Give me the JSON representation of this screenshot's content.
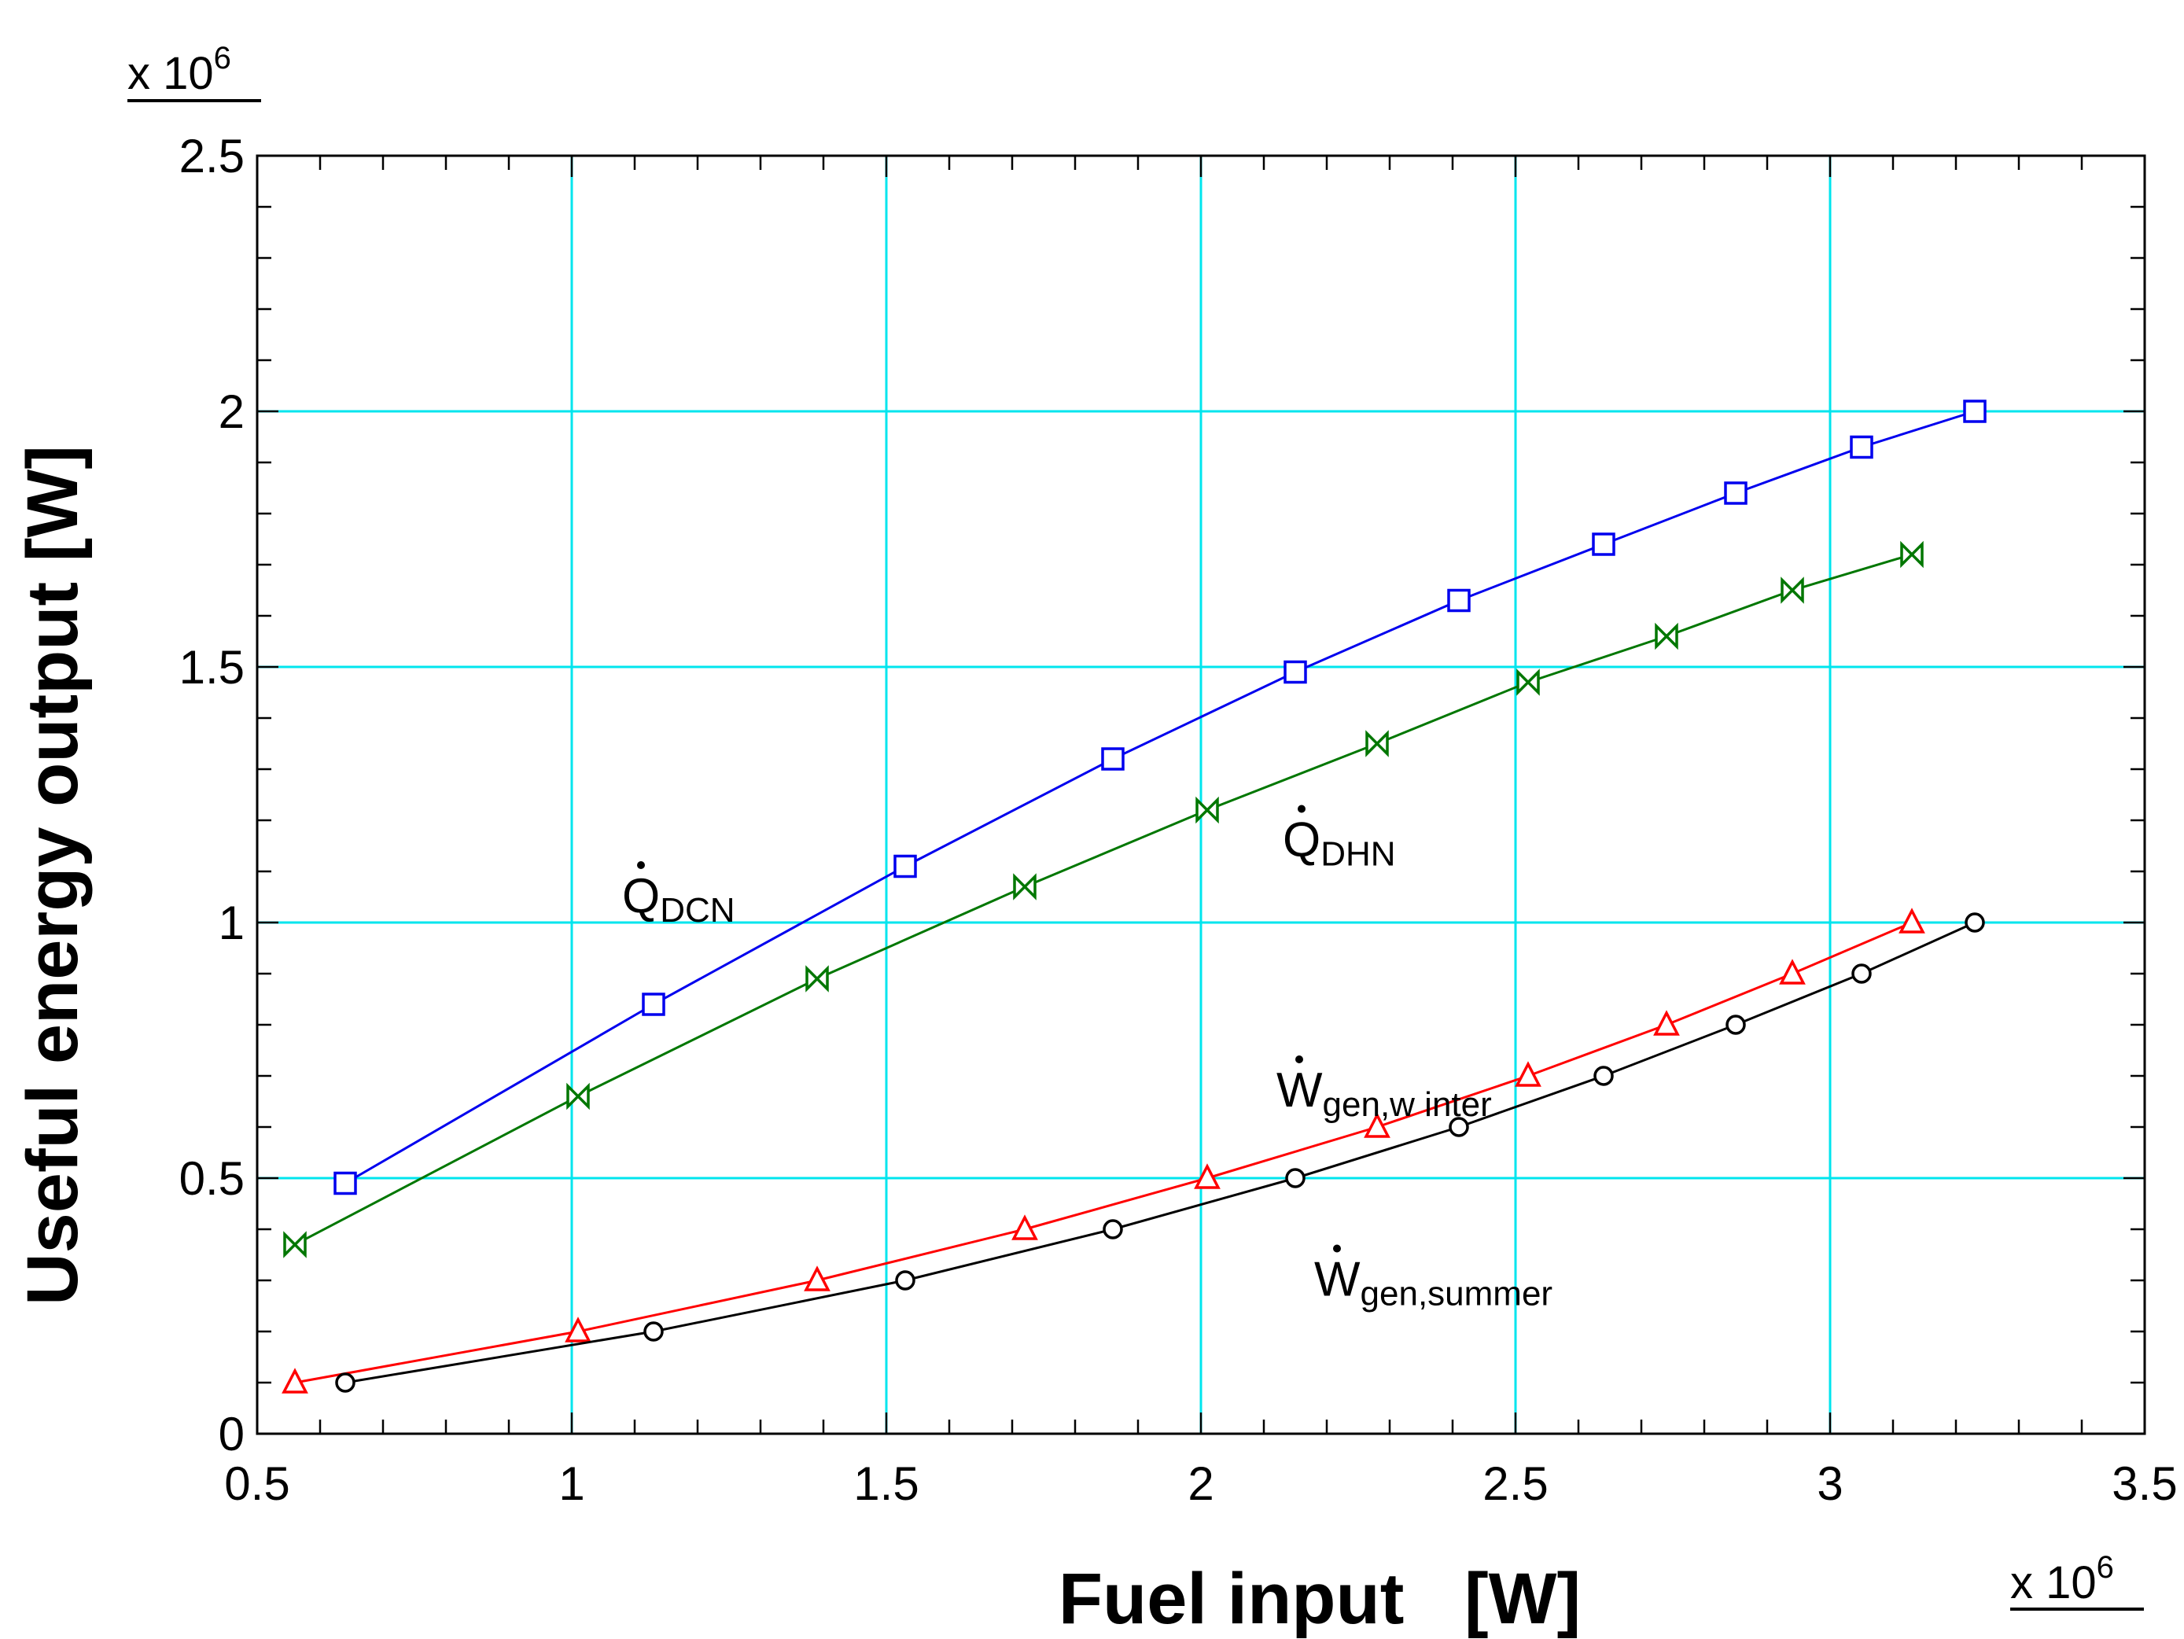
{
  "chart_data": {
    "type": "line",
    "title": "",
    "xlabel": "Fuel input   [W]",
    "ylabel": "Useful energy output [W]",
    "x_multiplier": {
      "base": "x 10",
      "exp": "6"
    },
    "y_multiplier": {
      "base": "x 10",
      "exp": "6"
    },
    "xlim": [
      0.5,
      3.5
    ],
    "ylim": [
      0,
      2.5
    ],
    "x_ticks": [
      0.5,
      1,
      1.5,
      2,
      2.5,
      3,
      3.5
    ],
    "x_tick_labels": [
      "0.5",
      "1",
      "1.5",
      "2",
      "2.5",
      "3",
      "3.5"
    ],
    "y_ticks": [
      0,
      0.5,
      1,
      1.5,
      2,
      2.5
    ],
    "y_tick_labels": [
      "0",
      "0.5",
      "1",
      "1.5",
      "2",
      "2.5"
    ],
    "grid": true,
    "grid_color": "#00e5ee",
    "series": [
      {
        "name": "Q_DCN",
        "color": "#0000ee",
        "marker": "square",
        "x": [
          0.64,
          1.13,
          1.53,
          1.86,
          2.15,
          2.41,
          2.64,
          2.85,
          3.05,
          3.23
        ],
        "y": [
          0.49,
          0.84,
          1.11,
          1.32,
          1.49,
          1.63,
          1.74,
          1.84,
          1.93,
          2.0
        ]
      },
      {
        "name": "Q_DHN",
        "color": "#007700",
        "marker": "bowtie",
        "x": [
          0.56,
          1.01,
          1.39,
          1.72,
          2.01,
          2.28,
          2.52,
          2.74,
          2.94,
          3.13
        ],
        "y": [
          0.37,
          0.66,
          0.89,
          1.07,
          1.22,
          1.35,
          1.47,
          1.56,
          1.65,
          1.72
        ]
      },
      {
        "name": "W_gen,winter",
        "color": "#ff0000",
        "marker": "triangle",
        "x": [
          0.56,
          1.01,
          1.39,
          1.72,
          2.01,
          2.28,
          2.52,
          2.74,
          2.94,
          3.13
        ],
        "y": [
          0.1,
          0.2,
          0.3,
          0.4,
          0.5,
          0.6,
          0.7,
          0.8,
          0.9,
          1.0
        ]
      },
      {
        "name": "W_gen,summer",
        "color": "#000000",
        "marker": "circle",
        "x": [
          0.64,
          1.13,
          1.53,
          1.86,
          2.15,
          2.41,
          2.64,
          2.85,
          3.05,
          3.23
        ],
        "y": [
          0.1,
          0.2,
          0.3,
          0.4,
          0.5,
          0.6,
          0.7,
          0.8,
          0.9,
          1.0
        ]
      }
    ],
    "annotations": [
      {
        "main": "Q",
        "sub": "DCN",
        "x": 1.08,
        "y": 1.02
      },
      {
        "main": "Q",
        "sub": "DHN",
        "x": 2.13,
        "y": 1.13
      },
      {
        "main": "W",
        "sub": "gen,w inter",
        "x": 2.12,
        "y": 0.64
      },
      {
        "main": "W",
        "sub": "gen,summer",
        "x": 2.18,
        "y": 0.27
      }
    ]
  }
}
